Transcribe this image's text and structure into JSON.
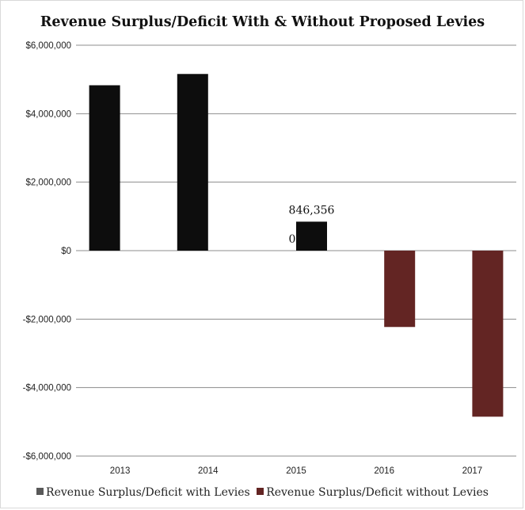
{
  "chart_data": {
    "type": "bar",
    "title": "Revenue Surplus/Deficit With & Without Proposed Levies",
    "categories": [
      "2013",
      "2014",
      "2015",
      "2016",
      "2017"
    ],
    "ylim": [
      -6000000,
      6000000
    ],
    "y_ticks": [
      6000000,
      4000000,
      2000000,
      0,
      -2000000,
      -4000000,
      -6000000
    ],
    "y_tick_labels": [
      "$6,000,000",
      "$4,000,000",
      "$2,000,000",
      "$0",
      "-$2,000,000",
      "-$4,000,000",
      "-$6,000,000"
    ],
    "grid": "horizontal",
    "legend_position": "bottom",
    "series": [
      {
        "name": "Revenue Surplus/Deficit with Levies",
        "color": "#0d0d0d",
        "legend_color": "#595959",
        "values": [
          4830000,
          5160000,
          0,
          null,
          null
        ],
        "data_labels": [
          null,
          null,
          "0",
          null,
          null
        ]
      },
      {
        "name": "Revenue Surplus/Deficit without Levies",
        "color": "#632523",
        "values": [
          null,
          null,
          846356,
          -2230000,
          -4850000
        ],
        "bar_colors": [
          null,
          null,
          "#0d0d0d",
          null,
          null
        ],
        "data_labels": [
          null,
          null,
          "846,356",
          null,
          null
        ]
      }
    ]
  }
}
